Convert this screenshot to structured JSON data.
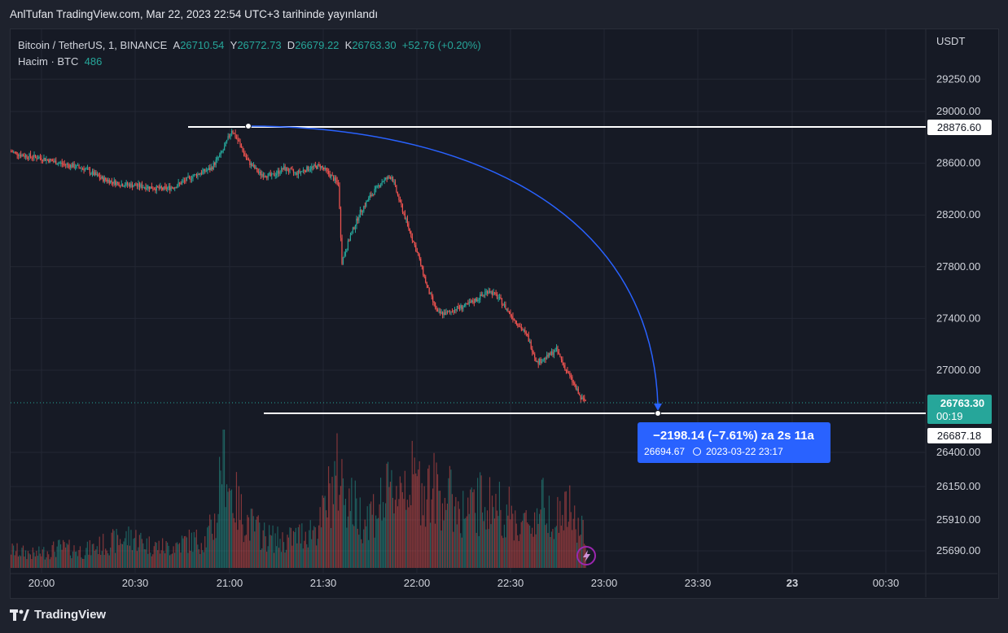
{
  "header": {
    "published_text": "AnlTufan TradingView.com, Mar 22, 2023 22:54 UTC+3 tarihinde yayınlandı"
  },
  "legend": {
    "symbol": "Bitcoin / TetherUS, 1, BINANCE",
    "open_label": "A",
    "open": "26710.54",
    "high_label": "Y",
    "high": "26772.73",
    "low_label": "D",
    "low": "26679.22",
    "close_label": "K",
    "close": "26763.30",
    "change": "+52.76 (+0.20%)",
    "volume_label": "Hacim · BTC",
    "volume": "486"
  },
  "axis": {
    "unit": "USDT"
  },
  "chart_data": {
    "type": "candlestick",
    "y_ticks": [
      29250,
      29000,
      28600,
      28200,
      27800,
      27400,
      27000,
      26400,
      26150,
      25910,
      25690
    ],
    "y_tick_labels": [
      "29250.00",
      "29000.00",
      "28600.00",
      "28200.00",
      "27800.00",
      "27400.00",
      "27000.00",
      "26400.00",
      "26150.00",
      "25910.00",
      "25690.00"
    ],
    "x_tick_labels": [
      "20:00",
      "20:30",
      "21:00",
      "21:30",
      "22:00",
      "22:30",
      "23:00",
      "23:30",
      "23",
      "00:30"
    ],
    "price_path": [
      [
        0,
        28690
      ],
      [
        10,
        28660
      ],
      [
        25,
        28640
      ],
      [
        40,
        28600
      ],
      [
        60,
        28560
      ],
      [
        75,
        28480
      ],
      [
        90,
        28440
      ],
      [
        110,
        28420
      ],
      [
        125,
        28400
      ],
      [
        135,
        28420
      ],
      [
        150,
        28500
      ],
      [
        165,
        28560
      ],
      [
        175,
        28700
      ],
      [
        182,
        28860
      ],
      [
        188,
        28760
      ],
      [
        195,
        28620
      ],
      [
        205,
        28520
      ],
      [
        215,
        28500
      ],
      [
        225,
        28560
      ],
      [
        235,
        28520
      ],
      [
        245,
        28560
      ],
      [
        255,
        28580
      ],
      [
        262,
        28520
      ],
      [
        270,
        28440
      ],
      [
        273,
        27840
      ],
      [
        280,
        28040
      ],
      [
        288,
        28220
      ],
      [
        296,
        28340
      ],
      [
        306,
        28460
      ],
      [
        314,
        28500
      ],
      [
        320,
        28320
      ],
      [
        328,
        28100
      ],
      [
        336,
        27880
      ],
      [
        344,
        27620
      ],
      [
        352,
        27440
      ],
      [
        360,
        27440
      ],
      [
        368,
        27480
      ],
      [
        376,
        27500
      ],
      [
        386,
        27560
      ],
      [
        394,
        27620
      ],
      [
        402,
        27560
      ],
      [
        410,
        27460
      ],
      [
        418,
        27360
      ],
      [
        426,
        27260
      ],
      [
        434,
        27060
      ],
      [
        442,
        27100
      ],
      [
        450,
        27160
      ],
      [
        458,
        27000
      ],
      [
        464,
        26900
      ],
      [
        470,
        26780
      ],
      [
        474,
        26763
      ]
    ],
    "volume_path": [
      [
        0,
        40
      ],
      [
        20,
        30
      ],
      [
        40,
        45
      ],
      [
        60,
        38
      ],
      [
        80,
        55
      ],
      [
        100,
        70
      ],
      [
        115,
        50
      ],
      [
        130,
        45
      ],
      [
        145,
        60
      ],
      [
        160,
        62
      ],
      [
        170,
        110
      ],
      [
        175,
        320
      ],
      [
        180,
        180
      ],
      [
        190,
        120
      ],
      [
        200,
        90
      ],
      [
        210,
        70
      ],
      [
        225,
        60
      ],
      [
        240,
        75
      ],
      [
        255,
        95
      ],
      [
        262,
        160
      ],
      [
        270,
        210
      ],
      [
        280,
        150
      ],
      [
        290,
        110
      ],
      [
        300,
        130
      ],
      [
        315,
        170
      ],
      [
        325,
        200
      ],
      [
        335,
        185
      ],
      [
        345,
        180
      ],
      [
        360,
        160
      ],
      [
        375,
        120
      ],
      [
        390,
        150
      ],
      [
        400,
        140
      ],
      [
        410,
        125
      ],
      [
        420,
        95
      ],
      [
        430,
        100
      ],
      [
        440,
        150
      ],
      [
        450,
        110
      ],
      [
        460,
        130
      ],
      [
        470,
        80
      ]
    ],
    "horizontal_lines": [
      {
        "price": "28876.60"
      },
      {
        "price": "26687.18"
      }
    ],
    "last_price": {
      "price": "26763.30",
      "countdown": "00:19"
    },
    "measure_label": {
      "main": "−2198.14 (−7.61%) za 2s 11a",
      "sub_price": "26694.67",
      "sub_time": "2023-03-22  23:17"
    }
  },
  "footer": {
    "brand": "TradingView"
  },
  "colors": {
    "up": "#26a69a",
    "down": "#ef5350",
    "measure": "#2962ff",
    "grid": "#232734"
  }
}
